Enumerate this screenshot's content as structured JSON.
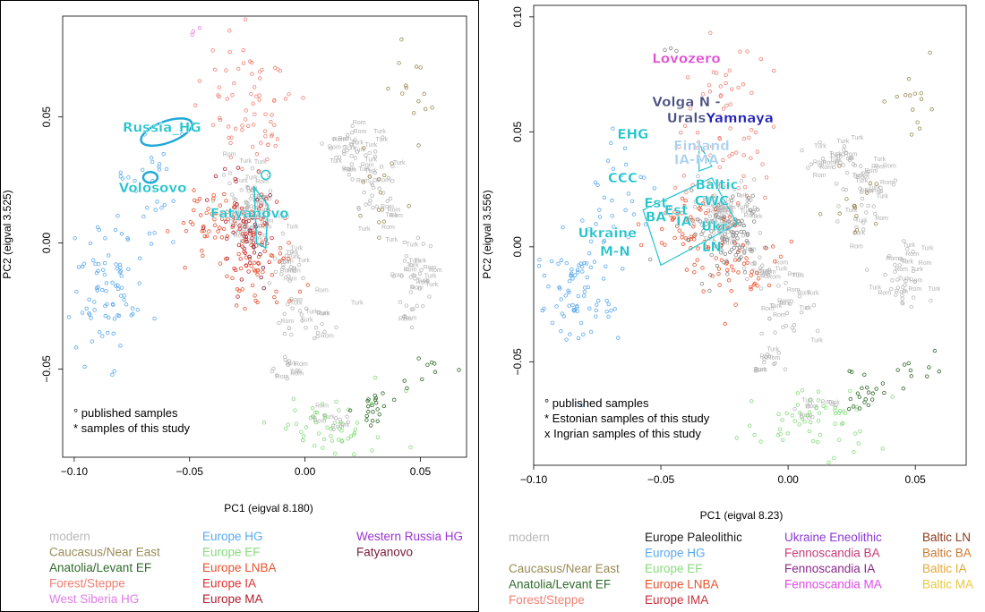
{
  "chart_data": [
    {
      "type": "scatter",
      "panel": "left",
      "xlabel": "PC1 (eigval 8.180)",
      "ylabel": "PC2 (eigval 3.525)",
      "xlim": [
        -0.105,
        0.07
      ],
      "ylim": [
        -0.085,
        0.09
      ],
      "xticks": [
        -0.1,
        -0.05,
        0.0,
        0.05
      ],
      "yticks": [
        0.05,
        0.0,
        -0.05
      ],
      "xtick_labels": [
        "−0.10",
        "−0.05",
        "0.00",
        "0.05"
      ],
      "ytick_labels": [
        "0.05",
        "0.00",
        "−0.05"
      ],
      "group_labels": [
        {
          "text": "Russia_HG",
          "x": -0.062,
          "y": 0.044,
          "color": "#22c3cc"
        },
        {
          "text": "Volosovo",
          "x": -0.066,
          "y": 0.02,
          "color": "#22c3cc"
        },
        {
          "text": "Fatyanovo",
          "x": -0.024,
          "y": 0.01,
          "color": "#22c3cc"
        }
      ],
      "notes": [
        "° published samples",
        "* samples of this study"
      ],
      "legend": [
        {
          "label": "modern",
          "color": "#b8b8b8"
        },
        {
          "label": "Caucasus/Near East",
          "color": "#9a8c55"
        },
        {
          "label": "Anatolia/Levant EF",
          "color": "#2f6b2a"
        },
        {
          "label": "Forest/Steppe",
          "color": "#f08073"
        },
        {
          "label": "West Siberia HG",
          "color": "#e07ce6"
        },
        {
          "label": "Europe HG",
          "color": "#5aa9ee"
        },
        {
          "label": "Europe EF",
          "color": "#86dc7c"
        },
        {
          "label": "Europe LNBA",
          "color": "#e8532f"
        },
        {
          "label": "Europe IA",
          "color": "#e23030"
        },
        {
          "label": "Europe MA",
          "color": "#b02030"
        },
        {
          "label": "Western Russia HG",
          "color": "#9c32d6"
        },
        {
          "label": "Fatyanovo",
          "color": "#7a1a3a"
        }
      ]
    },
    {
      "type": "scatter",
      "panel": "right",
      "xlabel": "PC1 (eigval 8.23)",
      "ylabel": "PC2 (eigval 3.556)",
      "xlim": [
        -0.1,
        0.07
      ],
      "ylim": [
        -0.095,
        0.105
      ],
      "xticks": [
        -0.1,
        -0.05,
        0.0,
        0.05
      ],
      "yticks": [
        0.1,
        0.05,
        0.0,
        -0.05
      ],
      "xtick_labels": [
        "−0.10",
        "−0.05",
        "0.00",
        "0.05"
      ],
      "ytick_labels": [
        "0.10",
        "0.05",
        "0.00",
        "−0.05"
      ],
      "group_labels": [
        {
          "text": "Lovozero",
          "x": -0.04,
          "y": 0.08,
          "color": "#e24bd2"
        },
        {
          "text": "Volga N -",
          "x": -0.04,
          "y": 0.061,
          "color": "#4a4f80"
        },
        {
          "text": "Urals",
          "x": -0.04,
          "y": 0.054,
          "color": "#4a4f80"
        },
        {
          "text": "Yamnaya",
          "x": -0.019,
          "y": 0.054,
          "color": "#2020b8"
        },
        {
          "text": "EHG",
          "x": -0.061,
          "y": 0.047,
          "color": "#22c3cc"
        },
        {
          "text": "Finland",
          "x": -0.034,
          "y": 0.042,
          "color": "#aad0f0"
        },
        {
          "text": "IA-MA",
          "x": -0.036,
          "y": 0.036,
          "color": "#aad0f0"
        },
        {
          "text": "CCC",
          "x": -0.065,
          "y": 0.028,
          "color": "#22c3cc"
        },
        {
          "text": "Baltic",
          "x": -0.028,
          "y": 0.025,
          "color": "#22c3cc"
        },
        {
          "text": "CWC",
          "x": -0.03,
          "y": 0.018,
          "color": "#22c3cc"
        },
        {
          "text": "Est",
          "x": -0.052,
          "y": 0.017,
          "color": "#22c3cc"
        },
        {
          "text": "Est",
          "x": -0.044,
          "y": 0.014,
          "color": "#22c3cc"
        },
        {
          "text": "BA",
          "x": -0.052,
          "y": 0.011,
          "color": "#22c3cc"
        },
        {
          "text": "IA",
          "x": -0.041,
          "y": 0.009,
          "color": "#22c3cc"
        },
        {
          "text": "Ukr",
          "x": -0.029,
          "y": 0.007,
          "color": "#22c3cc"
        },
        {
          "text": "Ukraine",
          "x": -0.071,
          "y": 0.004,
          "color": "#22c3cc"
        },
        {
          "text": "M-N",
          "x": -0.068,
          "y": -0.004,
          "color": "#22c3cc"
        },
        {
          "text": "LN",
          "x": -0.03,
          "y": -0.002,
          "color": "#22c3cc"
        }
      ],
      "notes": [
        "° published samples",
        "* Estonian samples of this study",
        "x Ingrian samples of this study"
      ],
      "legend": [
        {
          "label": "modern",
          "color": "#b8b8b8"
        },
        {
          "label": "Caucasus/Near East",
          "color": "#9a8c55"
        },
        {
          "label": "Anatolia/Levant EF",
          "color": "#2f6b2a"
        },
        {
          "label": "Forest/Steppe",
          "color": "#f08073"
        },
        {
          "label": "Europe Paleolithic",
          "color": "#1a1a1a"
        },
        {
          "label": "Europe HG",
          "color": "#5aa9ee"
        },
        {
          "label": "Europe EF",
          "color": "#86dc7c"
        },
        {
          "label": "Europe LNBA",
          "color": "#e8532f"
        },
        {
          "label": "Europe IMA",
          "color": "#c8303a"
        },
        {
          "label": "Ukraine Eneolithic",
          "color": "#8c3ad6"
        },
        {
          "label": "Fennoscandia BA",
          "color": "#c83a7a"
        },
        {
          "label": "Fennoscandia IA",
          "color": "#8a2a8c"
        },
        {
          "label": "Fennoscandia MA",
          "color": "#e04ae8"
        },
        {
          "label": "Baltic LN",
          "color": "#8a3a1a"
        },
        {
          "label": "Baltic BA",
          "color": "#c87a30"
        },
        {
          "label": "Baltic IA",
          "color": "#e8a83a"
        },
        {
          "label": "Baltic MA",
          "color": "#e8c840"
        }
      ]
    }
  ]
}
